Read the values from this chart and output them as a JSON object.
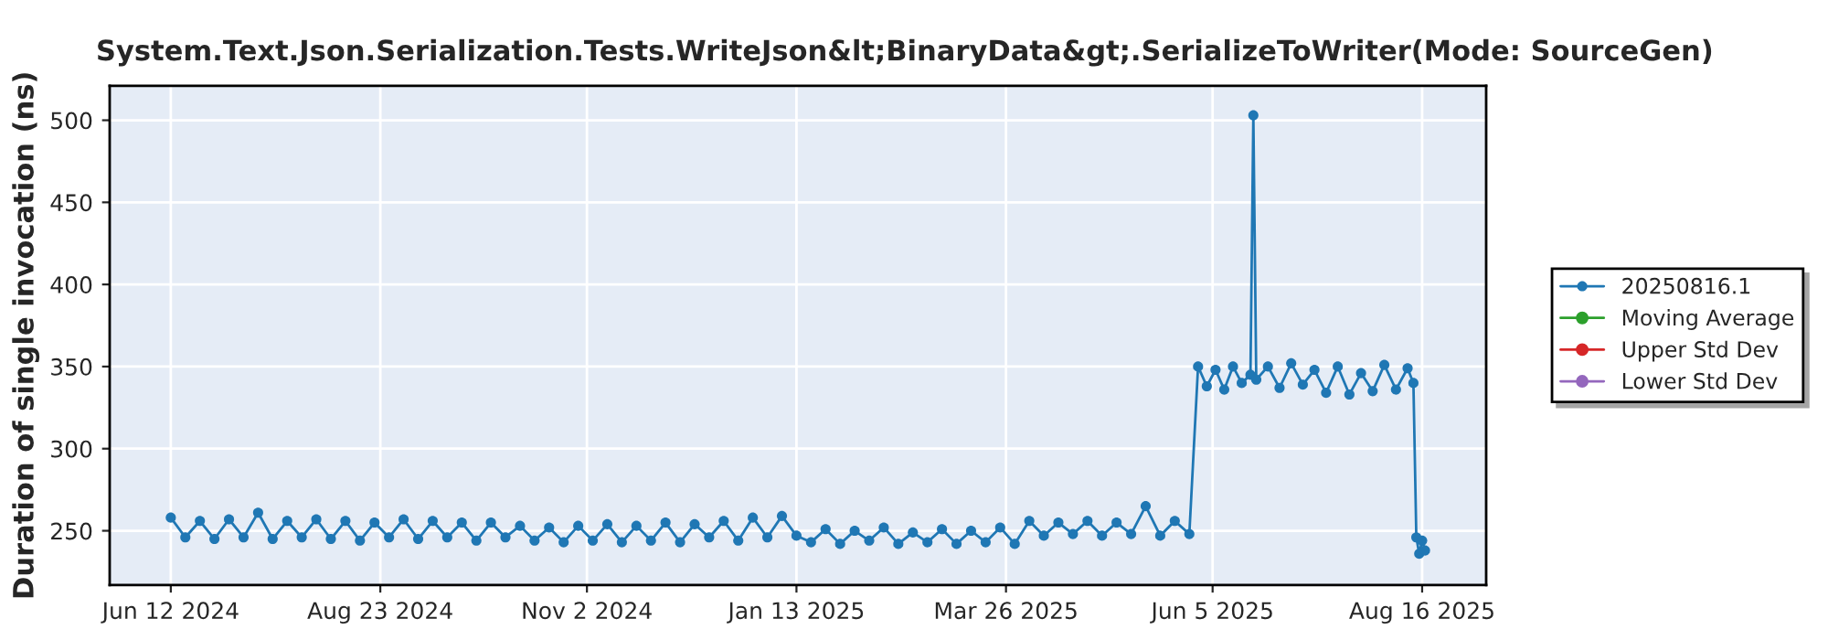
{
  "chart_data": {
    "type": "line",
    "title": "System.Text.Json.Serialization.Tests.WriteJson&lt;BinaryData&gt;.SerializeToWriter(Mode: SourceGen)",
    "ylabel": "Duration of single invocation (ns)",
    "x": [
      "2024-06-12",
      "2024-06-17",
      "2024-06-22",
      "2024-06-27",
      "2024-07-02",
      "2024-07-07",
      "2024-07-12",
      "2024-07-17",
      "2024-07-22",
      "2024-07-27",
      "2024-08-01",
      "2024-08-06",
      "2024-08-11",
      "2024-08-16",
      "2024-08-21",
      "2024-08-26",
      "2024-08-31",
      "2024-09-05",
      "2024-09-10",
      "2024-09-15",
      "2024-09-20",
      "2024-09-25",
      "2024-09-30",
      "2024-10-05",
      "2024-10-10",
      "2024-10-15",
      "2024-10-20",
      "2024-10-25",
      "2024-10-30",
      "2024-11-04",
      "2024-11-09",
      "2024-11-14",
      "2024-11-19",
      "2024-11-24",
      "2024-11-29",
      "2024-12-04",
      "2024-12-09",
      "2024-12-14",
      "2024-12-19",
      "2024-12-24",
      "2024-12-29",
      "2025-01-03",
      "2025-01-08",
      "2025-01-13",
      "2025-01-18",
      "2025-01-23",
      "2025-01-28",
      "2025-02-02",
      "2025-02-07",
      "2025-02-12",
      "2025-02-17",
      "2025-02-22",
      "2025-02-27",
      "2025-03-04",
      "2025-03-09",
      "2025-03-14",
      "2025-03-19",
      "2025-03-24",
      "2025-03-29",
      "2025-04-03",
      "2025-04-08",
      "2025-04-13",
      "2025-04-18",
      "2025-04-23",
      "2025-04-28",
      "2025-05-03",
      "2025-05-08",
      "2025-05-13",
      "2025-05-18",
      "2025-05-23",
      "2025-05-28",
      "2025-05-31",
      "2025-06-03",
      "2025-06-06",
      "2025-06-09",
      "2025-06-12",
      "2025-06-15",
      "2025-06-18",
      "2025-06-19",
      "2025-06-20",
      "2025-06-24",
      "2025-06-28",
      "2025-07-02",
      "2025-07-06",
      "2025-07-10",
      "2025-07-14",
      "2025-07-18",
      "2025-07-22",
      "2025-07-26",
      "2025-07-30",
      "2025-08-03",
      "2025-08-07",
      "2025-08-11",
      "2025-08-13",
      "2025-08-14",
      "2025-08-15",
      "2025-08-16",
      "2025-08-17"
    ],
    "series": [
      {
        "name": "20250816.1",
        "color": "#1f77b4",
        "values": [
          258,
          246,
          256,
          245,
          257,
          246,
          261,
          245,
          256,
          246,
          257,
          245,
          256,
          244,
          255,
          246,
          257,
          245,
          256,
          246,
          255,
          244,
          255,
          246,
          253,
          244,
          252,
          243,
          253,
          244,
          254,
          243,
          253,
          244,
          255,
          243,
          254,
          246,
          256,
          244,
          258,
          246,
          259,
          247,
          243,
          251,
          242,
          250,
          244,
          252,
          242,
          249,
          243,
          251,
          242,
          250,
          243,
          252,
          242,
          256,
          247,
          255,
          248,
          256,
          247,
          255,
          248,
          265,
          247,
          256,
          248,
          350,
          338,
          348,
          336,
          350,
          340,
          345,
          503,
          342,
          350,
          337,
          352,
          339,
          348,
          334,
          350,
          333,
          346,
          335,
          351,
          336,
          349,
          340,
          246,
          236,
          244,
          238
        ]
      },
      {
        "name": "Moving Average",
        "color": "#2ca02c",
        "values": [
          null,
          null,
          null,
          null,
          null,
          null,
          null,
          null,
          null,
          null,
          null,
          null,
          null,
          null,
          null,
          null,
          null,
          null,
          null,
          null,
          null,
          null,
          null,
          null,
          null,
          null,
          null,
          null,
          null,
          null,
          null,
          null,
          null,
          null,
          null,
          null,
          null,
          null,
          null,
          null,
          null,
          null,
          null,
          null,
          null,
          null,
          null,
          null,
          null,
          null,
          null,
          null,
          null,
          null,
          null,
          null,
          null,
          null,
          null,
          null,
          null,
          null,
          null,
          null,
          null,
          null,
          null,
          null,
          null,
          null,
          null,
          null,
          null,
          null,
          null,
          null,
          null,
          null,
          null,
          null,
          null,
          null,
          null,
          null,
          null,
          null,
          null,
          null,
          null,
          null,
          null,
          null,
          null,
          null,
          null,
          null,
          null,
          null
        ]
      },
      {
        "name": "Upper Std Dev",
        "color": "#d62728",
        "values": [
          null,
          null,
          null,
          null,
          null,
          null,
          null,
          null,
          null,
          null,
          null,
          null,
          null,
          null,
          null,
          null,
          null,
          null,
          null,
          null,
          null,
          null,
          null,
          null,
          null,
          null,
          null,
          null,
          null,
          null,
          null,
          null,
          null,
          null,
          null,
          null,
          null,
          null,
          null,
          null,
          null,
          null,
          null,
          null,
          null,
          null,
          null,
          null,
          null,
          null,
          null,
          null,
          null,
          null,
          null,
          null,
          null,
          null,
          null,
          null,
          null,
          null,
          null,
          null,
          null,
          null,
          null,
          null,
          null,
          null,
          null,
          null,
          null,
          null,
          null,
          null,
          null,
          null,
          null,
          null,
          null,
          null,
          null,
          null,
          null,
          null,
          null,
          null,
          null,
          null,
          null,
          null,
          null,
          null,
          null,
          null,
          null,
          null
        ]
      },
      {
        "name": "Lower Std Dev",
        "color": "#9467bd",
        "values": [
          null,
          null,
          null,
          null,
          null,
          null,
          null,
          null,
          null,
          null,
          null,
          null,
          null,
          null,
          null,
          null,
          null,
          null,
          null,
          null,
          null,
          null,
          null,
          null,
          null,
          null,
          null,
          null,
          null,
          null,
          null,
          null,
          null,
          null,
          null,
          null,
          null,
          null,
          null,
          null,
          null,
          null,
          null,
          null,
          null,
          null,
          null,
          null,
          null,
          null,
          null,
          null,
          null,
          null,
          null,
          null,
          null,
          null,
          null,
          null,
          null,
          null,
          null,
          null,
          null,
          null,
          null,
          null,
          null,
          null,
          null,
          null,
          null,
          null,
          null,
          null,
          null,
          null,
          null,
          null,
          null,
          null,
          null,
          null,
          null,
          null,
          null,
          null,
          null,
          null,
          null,
          null,
          null,
          null,
          null,
          null,
          null,
          null
        ]
      }
    ],
    "xlim": [
      "2024-05-22",
      "2025-09-07"
    ],
    "xticks": [
      {
        "value": "2024-06-12",
        "label": "Jun 12 2024"
      },
      {
        "value": "2024-08-23",
        "label": "Aug 23 2024"
      },
      {
        "value": "2024-11-02",
        "label": "Nov 2 2024"
      },
      {
        "value": "2025-01-13",
        "label": "Jan 13 2025"
      },
      {
        "value": "2025-03-26",
        "label": "Mar 26 2025"
      },
      {
        "value": "2025-06-05",
        "label": "Jun 5 2025"
      },
      {
        "value": "2025-08-16",
        "label": "Aug 16 2025"
      }
    ],
    "ylim": [
      217,
      521
    ],
    "yticks": [
      250,
      300,
      350,
      400,
      450,
      500
    ],
    "grid": true,
    "legend": "right",
    "marker": "circle",
    "line_style": "solid"
  }
}
